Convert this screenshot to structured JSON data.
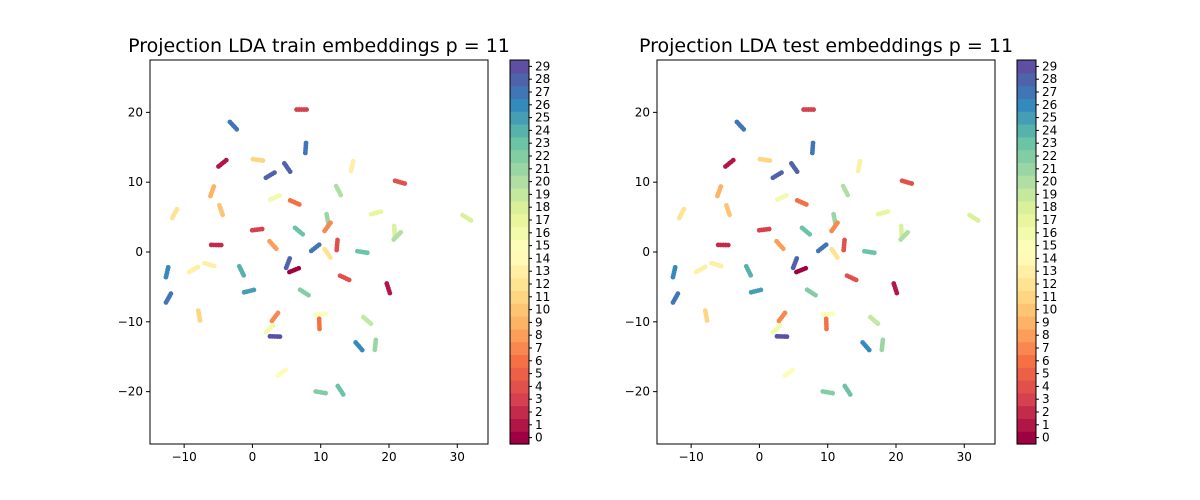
{
  "colormap": {
    "name": "Spectral",
    "stops": [
      "#9e0142",
      "#d53e4f",
      "#f46d43",
      "#fdae61",
      "#fee08b",
      "#ffffbf",
      "#e6f598",
      "#abdda4",
      "#66c2a5",
      "#3288bd",
      "#5e4fa2"
    ]
  },
  "chart_data": [
    {
      "type": "scatter",
      "title": "Projection LDA train embeddings p = 11",
      "xlabel": "",
      "ylabel": "",
      "xlim": [
        -15,
        34.5
      ],
      "ylim": [
        -27.5,
        27.5
      ],
      "xticks": [
        -10,
        0,
        10,
        20,
        30
      ],
      "yticks": [
        -20,
        -10,
        0,
        10,
        20
      ],
      "colorbar_ticks": [
        0,
        1,
        2,
        3,
        4,
        5,
        6,
        7,
        8,
        9,
        10,
        11,
        12,
        13,
        14,
        15,
        16,
        17,
        18,
        19,
        20,
        21,
        22,
        23,
        24,
        25,
        26,
        27,
        28,
        29
      ],
      "clusters": [
        {
          "x": 7.2,
          "y": 20.4,
          "c": 3
        },
        {
          "x": -2.8,
          "y": 18.1,
          "c": 27
        },
        {
          "x": 7.8,
          "y": 14.9,
          "c": 27
        },
        {
          "x": -4.4,
          "y": 12.7,
          "c": 1
        },
        {
          "x": 0.8,
          "y": 13.2,
          "c": 11
        },
        {
          "x": 5.1,
          "y": 12.1,
          "c": 28
        },
        {
          "x": 14.6,
          "y": 12.3,
          "c": 13
        },
        {
          "x": 2.6,
          "y": 11.0,
          "c": 28
        },
        {
          "x": 21.6,
          "y": 10.0,
          "c": 4
        },
        {
          "x": 12.6,
          "y": 8.8,
          "c": 20
        },
        {
          "x": -5.9,
          "y": 8.7,
          "c": 9
        },
        {
          "x": 3.3,
          "y": 7.8,
          "c": 16
        },
        {
          "x": 6.2,
          "y": 7.1,
          "c": 6
        },
        {
          "x": -4.6,
          "y": 6.0,
          "c": 10
        },
        {
          "x": -11.4,
          "y": 5.5,
          "c": 12
        },
        {
          "x": 18.1,
          "y": 5.6,
          "c": 17
        },
        {
          "x": 31.4,
          "y": 4.9,
          "c": 18
        },
        {
          "x": 11.0,
          "y": 4.7,
          "c": 21
        },
        {
          "x": 11.0,
          "y": 3.6,
          "c": 7
        },
        {
          "x": 0.7,
          "y": 3.2,
          "c": 3
        },
        {
          "x": 6.8,
          "y": 3.0,
          "c": 23
        },
        {
          "x": 20.8,
          "y": 3.0,
          "c": 18
        },
        {
          "x": 21.2,
          "y": 2.3,
          "c": 20
        },
        {
          "x": -5.3,
          "y": 1.0,
          "c": 2
        },
        {
          "x": 3.0,
          "y": 1.0,
          "c": 8
        },
        {
          "x": 12.4,
          "y": 1.0,
          "c": 4
        },
        {
          "x": 9.2,
          "y": 0.6,
          "c": 27
        },
        {
          "x": 16.1,
          "y": 0.0,
          "c": 23
        },
        {
          "x": 11.0,
          "y": -0.2,
          "c": 12
        },
        {
          "x": -12.5,
          "y": -2.9,
          "c": 26
        },
        {
          "x": -8.6,
          "y": -2.5,
          "c": 13
        },
        {
          "x": -6.3,
          "y": -1.8,
          "c": 13
        },
        {
          "x": -1.6,
          "y": -2.7,
          "c": 24
        },
        {
          "x": 5.2,
          "y": -1.6,
          "c": 28
        },
        {
          "x": 6.1,
          "y": -2.6,
          "c": 0
        },
        {
          "x": 13.5,
          "y": -3.7,
          "c": 4
        },
        {
          "x": 19.9,
          "y": -5.2,
          "c": 1
        },
        {
          "x": -12.3,
          "y": -6.6,
          "c": 27
        },
        {
          "x": -0.5,
          "y": -5.6,
          "c": 25
        },
        {
          "x": 7.6,
          "y": -5.8,
          "c": 22
        },
        {
          "x": -7.8,
          "y": -9.1,
          "c": 11
        },
        {
          "x": 3.3,
          "y": -9.3,
          "c": 7
        },
        {
          "x": 10.0,
          "y": -8.9,
          "c": 15
        },
        {
          "x": 16.8,
          "y": -9.8,
          "c": 19
        },
        {
          "x": 9.8,
          "y": -10.3,
          "c": 6
        },
        {
          "x": 2.5,
          "y": -11.0,
          "c": 16
        },
        {
          "x": 3.3,
          "y": -12.1,
          "c": 29
        },
        {
          "x": 15.6,
          "y": -13.5,
          "c": 26
        },
        {
          "x": 18.0,
          "y": -13.3,
          "c": 21
        },
        {
          "x": 4.3,
          "y": -17.3,
          "c": 15
        },
        {
          "x": 10.0,
          "y": -20.1,
          "c": 22
        },
        {
          "x": 12.9,
          "y": -19.8,
          "c": 23
        }
      ]
    },
    {
      "type": "scatter",
      "title": "Projection LDA test embeddings p = 11",
      "xlabel": "",
      "ylabel": "",
      "xlim": [
        -15,
        34.5
      ],
      "ylim": [
        -27.5,
        27.5
      ],
      "xticks": [
        -10,
        0,
        10,
        20,
        30
      ],
      "yticks": [
        -20,
        -10,
        0,
        10,
        20
      ],
      "colorbar_ticks": [
        0,
        1,
        2,
        3,
        4,
        5,
        6,
        7,
        8,
        9,
        10,
        11,
        12,
        13,
        14,
        15,
        16,
        17,
        18,
        19,
        20,
        21,
        22,
        23,
        24,
        25,
        26,
        27,
        28,
        29
      ],
      "clusters": [
        {
          "x": 7.2,
          "y": 20.4,
          "c": 3
        },
        {
          "x": -2.8,
          "y": 18.1,
          "c": 27
        },
        {
          "x": 7.8,
          "y": 14.9,
          "c": 27
        },
        {
          "x": -4.4,
          "y": 12.7,
          "c": 1
        },
        {
          "x": 0.8,
          "y": 13.2,
          "c": 11
        },
        {
          "x": 5.1,
          "y": 12.1,
          "c": 28
        },
        {
          "x": 14.6,
          "y": 12.3,
          "c": 13
        },
        {
          "x": 2.6,
          "y": 11.0,
          "c": 28
        },
        {
          "x": 21.6,
          "y": 10.0,
          "c": 4
        },
        {
          "x": 12.6,
          "y": 8.8,
          "c": 20
        },
        {
          "x": -5.9,
          "y": 8.7,
          "c": 9
        },
        {
          "x": 3.3,
          "y": 7.8,
          "c": 16
        },
        {
          "x": 6.2,
          "y": 7.1,
          "c": 6
        },
        {
          "x": -4.6,
          "y": 6.0,
          "c": 10
        },
        {
          "x": -11.4,
          "y": 5.5,
          "c": 12
        },
        {
          "x": 18.1,
          "y": 5.6,
          "c": 17
        },
        {
          "x": 31.4,
          "y": 4.9,
          "c": 18
        },
        {
          "x": 11.0,
          "y": 4.7,
          "c": 21
        },
        {
          "x": 11.0,
          "y": 3.6,
          "c": 7
        },
        {
          "x": 0.7,
          "y": 3.2,
          "c": 3
        },
        {
          "x": 6.8,
          "y": 3.0,
          "c": 23
        },
        {
          "x": 20.8,
          "y": 3.0,
          "c": 18
        },
        {
          "x": 21.2,
          "y": 2.3,
          "c": 20
        },
        {
          "x": -5.3,
          "y": 1.0,
          "c": 2
        },
        {
          "x": 3.0,
          "y": 1.0,
          "c": 8
        },
        {
          "x": 12.4,
          "y": 1.0,
          "c": 4
        },
        {
          "x": 9.2,
          "y": 0.6,
          "c": 27
        },
        {
          "x": 16.1,
          "y": 0.0,
          "c": 23
        },
        {
          "x": 11.0,
          "y": -0.2,
          "c": 12
        },
        {
          "x": -12.5,
          "y": -2.9,
          "c": 26
        },
        {
          "x": -8.6,
          "y": -2.5,
          "c": 13
        },
        {
          "x": -6.3,
          "y": -1.8,
          "c": 13
        },
        {
          "x": -1.6,
          "y": -2.7,
          "c": 24
        },
        {
          "x": 5.2,
          "y": -1.6,
          "c": 28
        },
        {
          "x": 6.1,
          "y": -2.6,
          "c": 0
        },
        {
          "x": 13.5,
          "y": -3.7,
          "c": 4
        },
        {
          "x": 19.9,
          "y": -5.2,
          "c": 1
        },
        {
          "x": -12.3,
          "y": -6.6,
          "c": 27
        },
        {
          "x": -0.5,
          "y": -5.6,
          "c": 25
        },
        {
          "x": 7.6,
          "y": -5.8,
          "c": 22
        },
        {
          "x": -7.8,
          "y": -9.1,
          "c": 11
        },
        {
          "x": 3.3,
          "y": -9.3,
          "c": 7
        },
        {
          "x": 10.0,
          "y": -8.9,
          "c": 15
        },
        {
          "x": 16.8,
          "y": -9.8,
          "c": 19
        },
        {
          "x": 9.8,
          "y": -10.3,
          "c": 6
        },
        {
          "x": 2.5,
          "y": -11.0,
          "c": 16
        },
        {
          "x": 3.3,
          "y": -12.1,
          "c": 29
        },
        {
          "x": 15.6,
          "y": -13.5,
          "c": 26
        },
        {
          "x": 18.0,
          "y": -13.3,
          "c": 21
        },
        {
          "x": 4.3,
          "y": -17.3,
          "c": 15
        },
        {
          "x": 10.0,
          "y": -20.1,
          "c": 22
        },
        {
          "x": 12.9,
          "y": -19.8,
          "c": 23
        }
      ]
    }
  ]
}
